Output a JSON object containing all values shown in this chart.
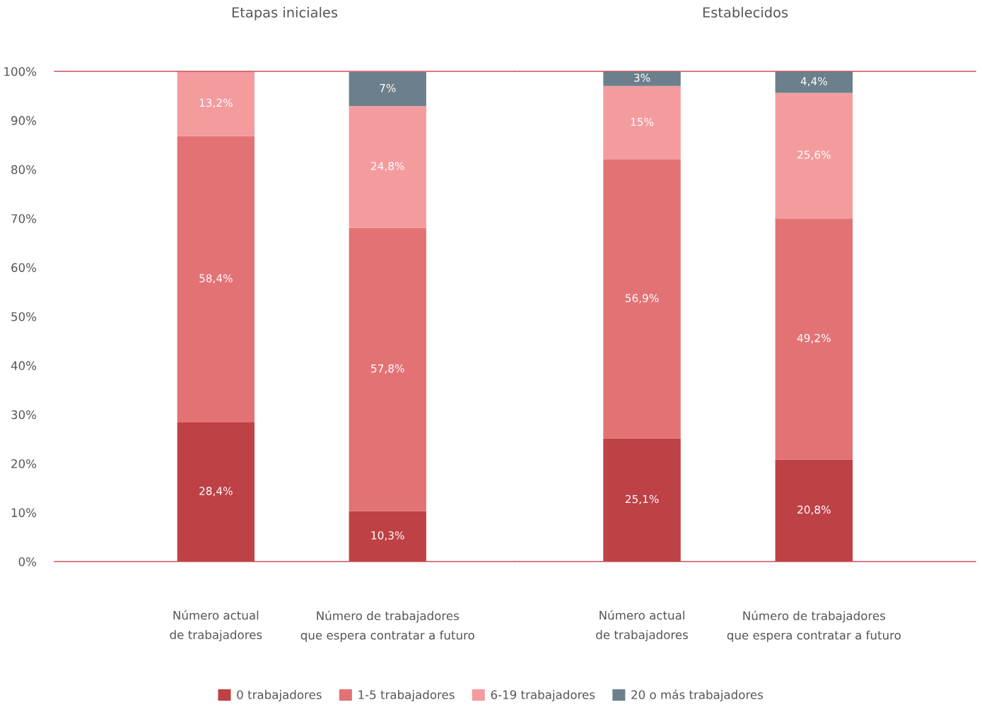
{
  "chart_data": [
    {
      "type": "bar",
      "stacked": true,
      "title": "Etapas iniciales",
      "categories": [
        "Número actual\nde trabajadores",
        "Número de trabajadores\nque espera contratar a futuro"
      ],
      "ylim": [
        0,
        100
      ],
      "yticks": [
        {
          "value": 0,
          "label": "0%"
        },
        {
          "value": 10,
          "label": "10%"
        },
        {
          "value": 20,
          "label": "20%"
        },
        {
          "value": 30,
          "label": "30%"
        },
        {
          "value": 40,
          "label": "40%"
        },
        {
          "value": 50,
          "label": "50%"
        },
        {
          "value": 60,
          "label": "60%"
        },
        {
          "value": 70,
          "label": "70%"
        },
        {
          "value": 80,
          "label": "80%"
        },
        {
          "value": 90,
          "label": "90%"
        },
        {
          "value": 100,
          "label": "100%"
        }
      ],
      "legend": "bottom",
      "grid": false,
      "series": [
        {
          "name": "0 trabajadores",
          "color": "#be4146",
          "values": [
            28.4,
            10.3
          ],
          "value_labels": [
            "28,4%",
            "10,3%"
          ]
        },
        {
          "name": "1-5 trabajadores",
          "color": "#e37275",
          "values": [
            58.4,
            57.8
          ],
          "value_labels": [
            "58,4%",
            "57,8%"
          ]
        },
        {
          "name": "6-19 trabajadores",
          "color": "#f49b9e",
          "values": [
            13.2,
            24.8
          ],
          "value_labels": [
            "13,2%",
            "24,8%"
          ]
        },
        {
          "name": "20 o más trabajadores",
          "color": "#6b808c",
          "values": [
            null,
            7
          ],
          "value_labels": [
            null,
            "7%"
          ]
        }
      ]
    },
    {
      "type": "bar",
      "stacked": true,
      "title": "Establecidos",
      "categories": [
        "Número actual\nde trabajadores",
        "Número de trabajadores\nque espera contratar a futuro"
      ],
      "ylim": [
        0,
        100
      ],
      "tick_labels": "x",
      "grid": false,
      "series": [
        {
          "name": "0 trabajadores",
          "color": "#be4146",
          "values": [
            25.1,
            20.8
          ],
          "value_labels": [
            "25,1%",
            "20,8%"
          ]
        },
        {
          "name": "1-5 trabajadores",
          "color": "#e37275",
          "values": [
            56.9,
            49.2
          ],
          "value_labels": [
            "56,9%",
            "49,2%"
          ]
        },
        {
          "name": "6-19 trabajadores",
          "color": "#f49b9e",
          "values": [
            15,
            25.6
          ],
          "value_labels": [
            "15%",
            "25,6%"
          ]
        },
        {
          "name": "20 o más trabajadores",
          "color": "#6b808c",
          "values": [
            3,
            4.4
          ],
          "value_labels": [
            "3%",
            "4,4%"
          ]
        }
      ]
    }
  ]
}
